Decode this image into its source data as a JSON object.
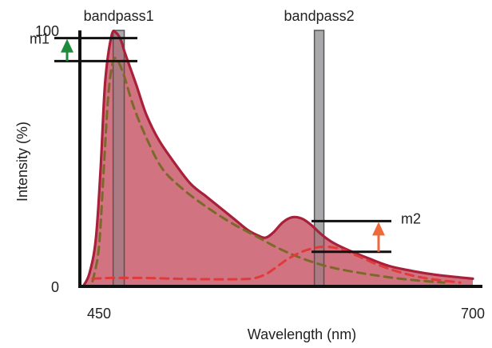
{
  "chart_data": {
    "type": "area",
    "title": "",
    "xlabel": "Wavelength (nm)",
    "ylabel": "Intensity (%)",
    "xlim": [
      450,
      700
    ],
    "ylim": [
      0,
      100
    ],
    "x_ticks": [
      {
        "value": 450,
        "label": "450"
      },
      {
        "value": 700,
        "label": "700"
      }
    ],
    "y_ticks": [
      {
        "value": 0,
        "label": "0"
      },
      {
        "value": 100,
        "label": "100"
      }
    ],
    "series": [
      {
        "style": "solid-filled",
        "color": "#a8203a",
        "fill": "#c85465",
        "x": [
          452,
          456,
          460,
          463,
          466,
          470,
          473,
          476,
          478,
          482,
          486,
          492,
          500,
          510,
          520,
          530,
          540,
          548,
          556,
          562,
          567,
          572,
          578,
          584,
          590,
          596,
          603,
          610,
          620,
          632,
          645,
          660,
          675,
          690,
          698
        ],
        "y": [
          0,
          5,
          18,
          45,
          80,
          98,
          99,
          96,
          92,
          85,
          78,
          67,
          57,
          48,
          40,
          35,
          30,
          26,
          22,
          20,
          19,
          21,
          25,
          27,
          26.5,
          24,
          20,
          17,
          14,
          11,
          8,
          6,
          4.5,
          3.5,
          3
        ]
      },
      {
        "style": "dashed",
        "color": "#7a6a2a",
        "x": [
          458,
          462,
          465,
          468,
          471,
          474,
          478,
          484,
          492,
          502,
          515,
          530,
          545,
          560,
          575,
          590,
          605,
          620,
          640,
          660,
          680
        ],
        "y": [
          2,
          15,
          45,
          75,
          88,
          88,
          82,
          70,
          58,
          46,
          38,
          31,
          25,
          20,
          15,
          11,
          8,
          6,
          4,
          2.5,
          1.5
        ]
      },
      {
        "style": "dashed",
        "color": "#e03a3a",
        "x": [
          458,
          470,
          490,
          510,
          530,
          550,
          560,
          568,
          575,
          582,
          590,
          598,
          606,
          615,
          625,
          640,
          655,
          670,
          690
        ],
        "y": [
          3,
          3.3,
          3.3,
          3,
          2.8,
          2.8,
          3.2,
          5,
          8,
          11,
          13.5,
          15,
          15.5,
          14.5,
          12,
          8,
          5,
          3,
          1.5
        ]
      }
    ],
    "bands": [
      {
        "label": "bandpass1",
        "x_start": 471,
        "x_end": 478
      },
      {
        "label": "bandpass2",
        "x_start": 598,
        "x_end": 604
      }
    ],
    "markers": [
      {
        "label": "m1",
        "side": "left",
        "y_high": 97,
        "y_low": 88,
        "arrow": "up",
        "arrow_color": "#1e8a3c"
      },
      {
        "label": "m2",
        "side": "right",
        "y_high": 25.5,
        "y_low": 13.5,
        "arrow": "up",
        "arrow_color": "#ee6a3a"
      }
    ]
  }
}
